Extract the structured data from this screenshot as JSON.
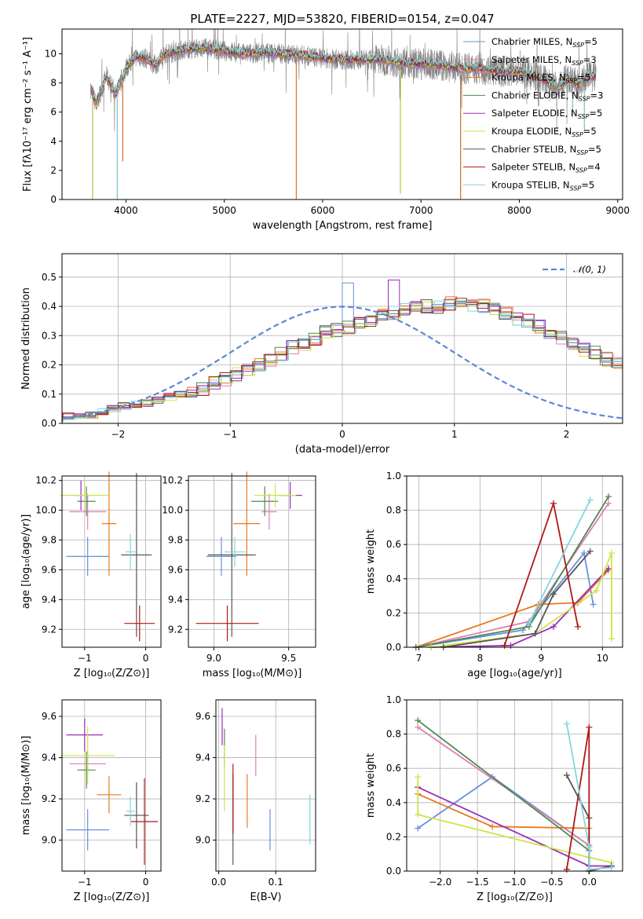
{
  "title": "PLATE=2227, MJD=53820, FIBERID=0154, z=0.047",
  "series": [
    {
      "name": "Chabrier MILES, N",
      "sub": "SSP",
      "tail": "=5",
      "color": "#6a8fdb"
    },
    {
      "name": "Salpeter MILES, N",
      "sub": "SSP",
      "tail": "=3",
      "color": "#e07fb4"
    },
    {
      "name": "Kroupa MILES, N",
      "sub": "SSP",
      "tail": "=5",
      "color": "#e8791f"
    },
    {
      "name": "Chabrier ELODIE, N",
      "sub": "SSP",
      "tail": "=3",
      "color": "#4f8a52"
    },
    {
      "name": "Salpeter ELODIE, N",
      "sub": "SSP",
      "tail": "=5",
      "color": "#9a2fb8"
    },
    {
      "name": "Kroupa ELODIE, N",
      "sub": "SSP",
      "tail": "=5",
      "color": "#cfe24a"
    },
    {
      "name": "Chabrier STELIB, N",
      "sub": "SSP",
      "tail": "=5",
      "color": "#555555"
    },
    {
      "name": "Salpeter STELIB, N",
      "sub": "SSP",
      "tail": "=4",
      "color": "#b01818"
    },
    {
      "name": "Kroupa STELIB, N",
      "sub": "SSP",
      "tail": "=5",
      "color": "#7fd8dc"
    }
  ],
  "chart_data": [
    {
      "id": "spectrum",
      "type": "line",
      "xlabel": "wavelength [Angstrom, rest frame]",
      "ylabel": "Flux [fλ10⁻¹⁷ erg cm⁻² s⁻¹ A⁻¹]",
      "xlim": [
        3350,
        9050
      ],
      "ylim": [
        0,
        11.7
      ],
      "xticks": [
        4000,
        5000,
        6000,
        7000,
        8000,
        9000
      ],
      "yticks": [
        0,
        2,
        4,
        6,
        8,
        10
      ],
      "data_color": "#808080",
      "data_range": [
        3640,
        8780
      ],
      "anchors": [
        [
          3640,
          7.6
        ],
        [
          3700,
          6.5
        ],
        [
          3800,
          8.5
        ],
        [
          3900,
          7.2
        ],
        [
          4000,
          9.0
        ],
        [
          4100,
          9.8
        ],
        [
          4200,
          9.7
        ],
        [
          4300,
          9.2
        ],
        [
          4400,
          10.0
        ],
        [
          4600,
          10.3
        ],
        [
          4800,
          10.4
        ],
        [
          5000,
          10.2
        ],
        [
          5200,
          10.0
        ],
        [
          5400,
          10.1
        ],
        [
          5600,
          10.0
        ],
        [
          5800,
          9.9
        ],
        [
          6000,
          9.7
        ],
        [
          6200,
          9.6
        ],
        [
          6400,
          9.6
        ],
        [
          6600,
          9.6
        ],
        [
          6800,
          9.4
        ],
        [
          7000,
          9.3
        ],
        [
          7200,
          9.2
        ],
        [
          7400,
          9.0
        ],
        [
          7600,
          9.0
        ],
        [
          7800,
          8.8
        ],
        [
          8000,
          8.8
        ],
        [
          8200,
          8.4
        ],
        [
          8400,
          7.6
        ],
        [
          8500,
          8.4
        ],
        [
          8600,
          7.8
        ],
        [
          8700,
          8.5
        ],
        [
          8780,
          8.4
        ]
      ],
      "drops": [
        [
          3660,
          0.0
        ],
        [
          3910,
          0.0
        ],
        [
          3965,
          2.6
        ],
        [
          5730,
          0.0
        ],
        [
          6790,
          0.4
        ],
        [
          7400,
          0.0
        ],
        [
          8540,
          5.6
        ],
        [
          8660,
          4.7
        ]
      ]
    },
    {
      "id": "residuals",
      "type": "area",
      "xlabel": "(data-model)/error",
      "ylabel": "Normed distribution",
      "xlim": [
        -2.5,
        2.5
      ],
      "ylim": [
        0,
        0.58
      ],
      "xticks": [
        -2,
        -1,
        0,
        1,
        2
      ],
      "yticks": [
        0.0,
        0.1,
        0.2,
        0.3,
        0.4,
        0.5
      ],
      "bin_width": 0.1,
      "base_hist": [
        0.025,
        0.03,
        0.03,
        0.04,
        0.05,
        0.06,
        0.065,
        0.07,
        0.08,
        0.09,
        0.1,
        0.11,
        0.12,
        0.14,
        0.15,
        0.17,
        0.18,
        0.2,
        0.22,
        0.24,
        0.26,
        0.27,
        0.29,
        0.31,
        0.32,
        0.33,
        0.34,
        0.35,
        0.37,
        0.38,
        0.39,
        0.4,
        0.4,
        0.4,
        0.41,
        0.41,
        0.4,
        0.4,
        0.39,
        0.38,
        0.36,
        0.35,
        0.33,
        0.31,
        0.29,
        0.27,
        0.25,
        0.24,
        0.22,
        0.2,
        0.18,
        0.17,
        0.15,
        0.13,
        0.12,
        0.11,
        0.1,
        0.09,
        0.08,
        0.07,
        0.06,
        0.05,
        0.045,
        0.04,
        0.035,
        0.03,
        0.025,
        0.025,
        0.02,
        0.02,
        0.02
      ],
      "peaks": [
        {
          "x": 0.4,
          "y": 0.55,
          "series": 4
        },
        {
          "x": 0.0,
          "y": 0.48,
          "series": 0
        },
        {
          "x": 0.4,
          "y": 0.49,
          "series": 4
        }
      ],
      "normal_label": "𝒩(0, 1)",
      "normal_color": "#5b88d6"
    },
    {
      "id": "Z_vs_age",
      "type": "scatter",
      "xlabel": "Z [log₁₀(Z/Z⊙)]",
      "ylabel": "age  [log₁₀(age/yr)]",
      "xlim": [
        -1.37,
        0.25
      ],
      "ylim": [
        9.08,
        10.23
      ],
      "xticks": [
        -1,
        0
      ],
      "yticks": [
        9.2,
        9.4,
        9.6,
        9.8,
        10.0,
        10.2
      ],
      "points": [
        {
          "s": 0,
          "x": -0.95,
          "y": 9.69,
          "xe": 0.35,
          "ye": 0.13
        },
        {
          "s": 1,
          "x": -0.95,
          "y": 9.99,
          "xe": 0.3,
          "ye": 0.12
        },
        {
          "s": 2,
          "x": -0.6,
          "y": 9.91,
          "xe": 0.12,
          "ye": 0.35
        },
        {
          "s": 3,
          "x": -0.97,
          "y": 10.06,
          "xe": 0.15,
          "ye": 0.1
        },
        {
          "s": 4,
          "x": -1.06,
          "y": 10.1,
          "xe": 0.1,
          "ye": 0.1
        },
        {
          "s": 5,
          "x": -1.0,
          "y": 10.1,
          "xe": 0.4,
          "ye": 0.08
        },
        {
          "s": 6,
          "x": -0.15,
          "y": 9.7,
          "xe": 0.25,
          "ye": 0.55
        },
        {
          "s": 7,
          "x": -0.1,
          "y": 9.24,
          "xe": 0.25,
          "ye": 0.12
        },
        {
          "s": 8,
          "x": -0.25,
          "y": 9.72,
          "xe": 0.08,
          "ye": 0.12
        }
      ]
    },
    {
      "id": "mass_vs_age",
      "type": "scatter",
      "xlabel": "mass [log₁₀(M/M⊙)]",
      "ylabel": "",
      "xlim": [
        8.83,
        9.68
      ],
      "ylim": [
        9.08,
        10.23
      ],
      "xticks": [
        9.0,
        9.5
      ],
      "yticks": [
        9.2,
        9.4,
        9.6,
        9.8,
        10.0,
        10.2
      ],
      "points": [
        {
          "s": 0,
          "x": 9.05,
          "y": 9.69,
          "xe": 0.1,
          "ye": 0.13
        },
        {
          "s": 1,
          "x": 9.37,
          "y": 9.99,
          "xe": 0.05,
          "ye": 0.12
        },
        {
          "s": 2,
          "x": 9.22,
          "y": 9.91,
          "xe": 0.09,
          "ye": 0.35
        },
        {
          "s": 3,
          "x": 9.34,
          "y": 10.06,
          "xe": 0.09,
          "ye": 0.1
        },
        {
          "s": 4,
          "x": 9.51,
          "y": 10.1,
          "xe": 0.08,
          "ye": 0.09
        },
        {
          "s": 5,
          "x": 9.41,
          "y": 10.1,
          "xe": 0.14,
          "ye": 0.08
        },
        {
          "s": 6,
          "x": 9.12,
          "y": 9.7,
          "xe": 0.16,
          "ye": 0.55
        },
        {
          "s": 7,
          "x": 9.09,
          "y": 9.24,
          "xe": 0.21,
          "ye": 0.12
        },
        {
          "s": 8,
          "x": 9.14,
          "y": 9.72,
          "xe": 0.07,
          "ye": 0.1
        }
      ]
    },
    {
      "id": "age_vs_weight",
      "type": "line",
      "xlabel": "age  [log₁₀(age/yr)]",
      "ylabel": "mass weight",
      "xlim": [
        6.8,
        10.33
      ],
      "ylim": [
        0,
        1.0
      ],
      "xticks": [
        7,
        8,
        9,
        10
      ],
      "yticks": [
        0.0,
        0.2,
        0.4,
        0.6,
        0.8,
        1.0
      ],
      "lines": [
        {
          "s": 0,
          "pts": [
            [
              6.95,
              0.0
            ],
            [
              8.7,
              0.1
            ],
            [
              9.7,
              0.55
            ],
            [
              9.85,
              0.25
            ]
          ]
        },
        {
          "s": 1,
          "pts": [
            [
              6.95,
              0.0
            ],
            [
              8.8,
              0.15
            ],
            [
              10.1,
              0.84
            ]
          ]
        },
        {
          "s": 2,
          "pts": [
            [
              6.95,
              0.0
            ],
            [
              8.95,
              0.25
            ],
            [
              9.6,
              0.26
            ],
            [
              10.1,
              0.45
            ]
          ]
        },
        {
          "s": 3,
          "pts": [
            [
              6.95,
              0.0
            ],
            [
              8.8,
              0.12
            ],
            [
              10.1,
              0.88
            ]
          ]
        },
        {
          "s": 4,
          "pts": [
            [
              7.2,
              0.0
            ],
            [
              8.5,
              0.01
            ],
            [
              9.2,
              0.12
            ],
            [
              10.1,
              0.46
            ]
          ]
        },
        {
          "s": 5,
          "pts": [
            [
              7.2,
              0.0
            ],
            [
              8.9,
              0.08
            ],
            [
              9.9,
              0.33
            ],
            [
              10.15,
              0.55
            ],
            [
              10.15,
              0.05
            ]
          ]
        },
        {
          "s": 6,
          "pts": [
            [
              7.4,
              0.0
            ],
            [
              8.9,
              0.08
            ],
            [
              9.2,
              0.31
            ],
            [
              9.8,
              0.56
            ]
          ]
        },
        {
          "s": 7,
          "pts": [
            [
              8.4,
              0.01
            ],
            [
              9.2,
              0.84
            ],
            [
              9.6,
              0.12
            ]
          ]
        },
        {
          "s": 8,
          "pts": [
            [
              8.8,
              0.14
            ],
            [
              9.8,
              0.86
            ]
          ]
        }
      ]
    },
    {
      "id": "Z_vs_mass",
      "type": "scatter",
      "xlabel": "Z [log₁₀(Z/Z⊙)]",
      "ylabel": "mass [log₁₀(M/M⊙)]",
      "xlim": [
        -1.37,
        0.25
      ],
      "ylim": [
        8.85,
        9.68
      ],
      "xticks": [
        -1,
        0
      ],
      "yticks": [
        9.0,
        9.2,
        9.4,
        9.6
      ],
      "points": [
        {
          "s": 0,
          "x": -0.95,
          "y": 9.05,
          "xe": 0.35,
          "ye": 0.1
        },
        {
          "s": 1,
          "x": -0.95,
          "y": 9.37,
          "xe": 0.3,
          "ye": 0.05
        },
        {
          "s": 2,
          "x": -0.6,
          "y": 9.22,
          "xe": 0.2,
          "ye": 0.09
        },
        {
          "s": 3,
          "x": -0.97,
          "y": 9.34,
          "xe": 0.15,
          "ye": 0.09
        },
        {
          "s": 4,
          "x": -1.0,
          "y": 9.51,
          "xe": 0.3,
          "ye": 0.08
        },
        {
          "s": 5,
          "x": -0.95,
          "y": 9.41,
          "xe": 0.45,
          "ye": 0.14
        },
        {
          "s": 6,
          "x": -0.15,
          "y": 9.12,
          "xe": 0.2,
          "ye": 0.16
        },
        {
          "s": 7,
          "x": -0.02,
          "y": 9.09,
          "xe": 0.22,
          "ye": 0.21
        },
        {
          "s": 8,
          "x": -0.25,
          "y": 9.14,
          "xe": 0.07,
          "ye": 0.07
        }
      ]
    },
    {
      "id": "ebv_vs_mass",
      "type": "scatter",
      "xlabel": "E(B-V)",
      "ylabel": "",
      "xlim": [
        -0.005,
        0.17
      ],
      "ylim": [
        8.85,
        9.68
      ],
      "xticks": [
        0.0,
        0.1
      ],
      "yticks": [
        9.0,
        9.2,
        9.4,
        9.6
      ],
      "points": [
        {
          "s": 0,
          "x": 0.09,
          "y": 9.05,
          "xe": 0,
          "ye": 0.1
        },
        {
          "s": 1,
          "x": 0.065,
          "y": 9.41,
          "xe": 0,
          "ye": 0.1
        },
        {
          "s": 2,
          "x": 0.05,
          "y": 9.19,
          "xe": 0,
          "ye": 0.13
        },
        {
          "s": 3,
          "x": 0.01,
          "y": 9.45,
          "xe": 0,
          "ye": 0.09
        },
        {
          "s": 4,
          "x": 0.006,
          "y": 9.55,
          "xe": 0,
          "ye": 0.09
        },
        {
          "s": 5,
          "x": 0.01,
          "y": 9.3,
          "xe": 0,
          "ye": 0.16
        },
        {
          "s": 6,
          "x": 0.025,
          "y": 9.1,
          "xe": 0,
          "ye": 0.22
        },
        {
          "s": 7,
          "x": 0.025,
          "y": 9.2,
          "xe": 0,
          "ye": 0.17
        },
        {
          "s": 8,
          "x": 0.16,
          "y": 9.1,
          "xe": 0,
          "ye": 0.12
        }
      ]
    },
    {
      "id": "Z_vs_weight",
      "type": "line",
      "xlabel": "Z [log₁₀(Z/Z⊙)]",
      "ylabel": "mass weight",
      "xlim": [
        -2.45,
        0.45
      ],
      "ylim": [
        0,
        1.0
      ],
      "xticks": [
        -2.0,
        -1.5,
        -1.0,
        -0.5,
        0.0
      ],
      "yticks": [
        0.0,
        0.2,
        0.4,
        0.6,
        0.8,
        1.0
      ],
      "lines": [
        {
          "s": 0,
          "pts": [
            [
              -2.3,
              0.25
            ],
            [
              -1.3,
              0.55
            ],
            [
              0.0,
              0.15
            ],
            [
              0.0,
              0.0
            ]
          ]
        },
        {
          "s": 1,
          "pts": [
            [
              -2.3,
              0.84
            ],
            [
              0.0,
              0.15
            ]
          ]
        },
        {
          "s": 2,
          "pts": [
            [
              -2.3,
              0.45
            ],
            [
              -1.3,
              0.26
            ],
            [
              0.0,
              0.25
            ]
          ]
        },
        {
          "s": 3,
          "pts": [
            [
              -2.3,
              0.88
            ],
            [
              0.0,
              0.12
            ]
          ]
        },
        {
          "s": 4,
          "pts": [
            [
              -2.3,
              0.49
            ],
            [
              0.0,
              0.03
            ],
            [
              0.3,
              0.03
            ]
          ]
        },
        {
          "s": 5,
          "pts": [
            [
              -2.3,
              0.55
            ],
            [
              -2.3,
              0.33
            ],
            [
              0.0,
              0.08
            ],
            [
              0.3,
              0.05
            ]
          ]
        },
        {
          "s": 6,
          "pts": [
            [
              -0.3,
              0.56
            ],
            [
              0.0,
              0.31
            ],
            [
              0.0,
              0.0
            ],
            [
              0.3,
              0.03
            ]
          ]
        },
        {
          "s": 7,
          "pts": [
            [
              -0.3,
              0.01
            ],
            [
              0.0,
              0.84
            ],
            [
              0.0,
              0.0
            ]
          ]
        },
        {
          "s": 8,
          "pts": [
            [
              -0.3,
              0.86
            ],
            [
              0.0,
              0.14
            ],
            [
              0.0,
              0.01
            ],
            [
              0.3,
              0.02
            ]
          ]
        }
      ]
    }
  ]
}
